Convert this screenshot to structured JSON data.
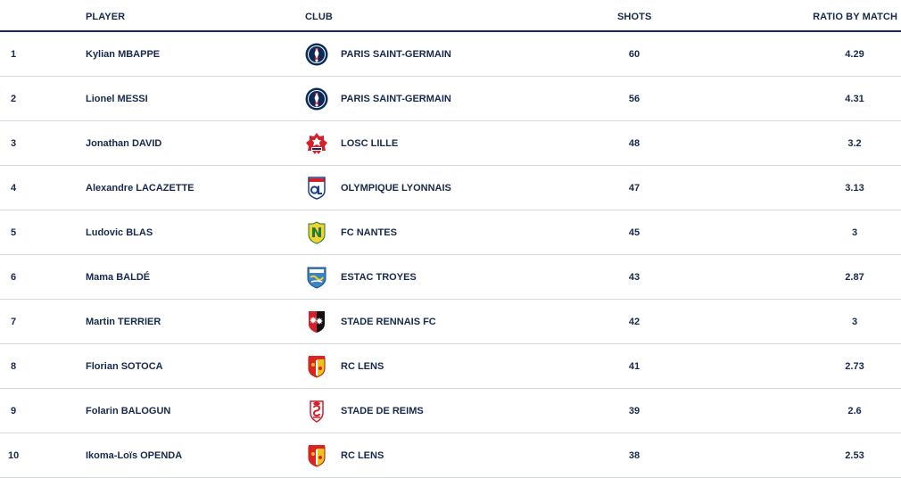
{
  "header": {
    "player": "PLAYER",
    "club": "CLUB",
    "shots": "SHOTS",
    "ratio": "RATIO BY MATCH"
  },
  "rows": [
    {
      "rank": "1",
      "player": "Kylian MBAPPE",
      "club": "PARIS SAINT-GERMAIN",
      "crest": "psg-crest-icon",
      "shots": "60",
      "ratio": "4.29"
    },
    {
      "rank": "2",
      "player": "Lionel MESSI",
      "club": "PARIS SAINT-GERMAIN",
      "crest": "psg-crest-icon",
      "shots": "56",
      "ratio": "4.31"
    },
    {
      "rank": "3",
      "player": "Jonathan DAVID",
      "club": "LOSC LILLE",
      "crest": "lille-crest-icon",
      "shots": "48",
      "ratio": "3.2"
    },
    {
      "rank": "4",
      "player": "Alexandre LACAZETTE",
      "club": "OLYMPIQUE LYONNAIS",
      "crest": "lyon-crest-icon",
      "shots": "47",
      "ratio": "3.13"
    },
    {
      "rank": "5",
      "player": "Ludovic BLAS",
      "club": "FC NANTES",
      "crest": "nantes-crest-icon",
      "shots": "45",
      "ratio": "3"
    },
    {
      "rank": "6",
      "player": "Mama BALDÉ",
      "club": "ESTAC TROYES",
      "crest": "troyes-crest-icon",
      "shots": "43",
      "ratio": "2.87"
    },
    {
      "rank": "7",
      "player": "Martin TERRIER",
      "club": "STADE RENNAIS FC",
      "crest": "rennes-crest-icon",
      "shots": "42",
      "ratio": "3"
    },
    {
      "rank": "8",
      "player": "Florian SOTOCA",
      "club": "RC LENS",
      "crest": "lens-crest-icon",
      "shots": "41",
      "ratio": "2.73"
    },
    {
      "rank": "9",
      "player": "Folarin BALOGUN",
      "club": "STADE DE REIMS",
      "crest": "reims-crest-icon",
      "shots": "39",
      "ratio": "2.6"
    },
    {
      "rank": "10",
      "player": "Ikoma-Loïs OPENDA",
      "club": "RC LENS",
      "crest": "lens-crest-icon",
      "shots": "38",
      "ratio": "2.53"
    }
  ],
  "colors": {
    "text": "#16294a",
    "divider": "#d4d7dd",
    "psg": "#0b2a5c",
    "lille": "#d51f2b",
    "lyon": "#1b3e8f",
    "nantes": "#f2d22e",
    "troyes": "#3d84c6",
    "rennes": "#d51f2b",
    "lens": "#d9241f",
    "reims": "#d51f2b"
  }
}
